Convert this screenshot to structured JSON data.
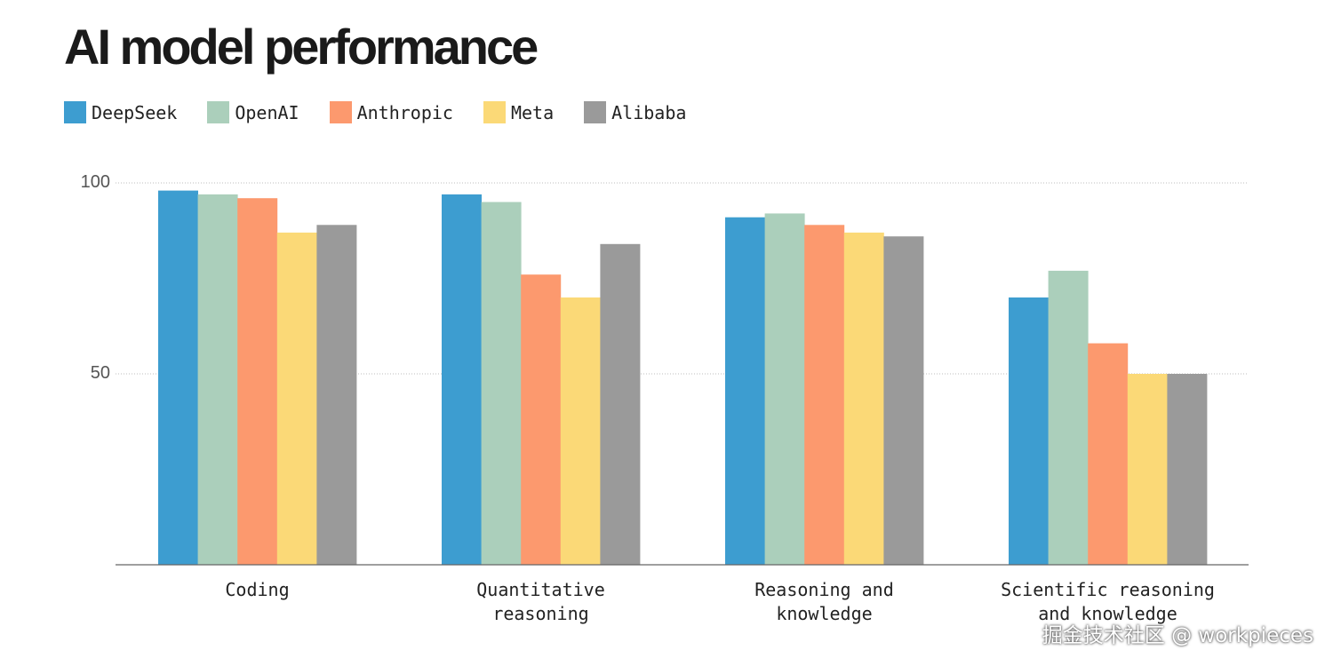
{
  "chart_data": {
    "type": "bar",
    "title": "AI model performance",
    "xlabel": "",
    "ylabel": "",
    "categories": [
      [
        "Coding"
      ],
      [
        "Quantitative",
        "reasoning"
      ],
      [
        "Reasoning and",
        "knowledge"
      ],
      [
        "Scientific reasoning",
        "and knowledge"
      ]
    ],
    "series": [
      {
        "name": "DeepSeek",
        "color": "#3d9dd0",
        "values": [
          98,
          97,
          91,
          70
        ]
      },
      {
        "name": "OpenAI",
        "color": "#abcfbb",
        "values": [
          97,
          95,
          92,
          77
        ]
      },
      {
        "name": "Anthropic",
        "color": "#fc996e",
        "values": [
          96,
          76,
          89,
          58
        ]
      },
      {
        "name": "Meta",
        "color": "#fbd977",
        "values": [
          87,
          70,
          87,
          50
        ]
      },
      {
        "name": "Alibaba",
        "color": "#9a9a9a",
        "values": [
          89,
          84,
          86,
          50
        ]
      }
    ],
    "ylim": [
      0,
      100
    ],
    "yticks": [
      "100",
      "50"
    ],
    "grid": true,
    "legend_placement": "top-left"
  },
  "watermark": "掘金技术社区 @ workpieces"
}
